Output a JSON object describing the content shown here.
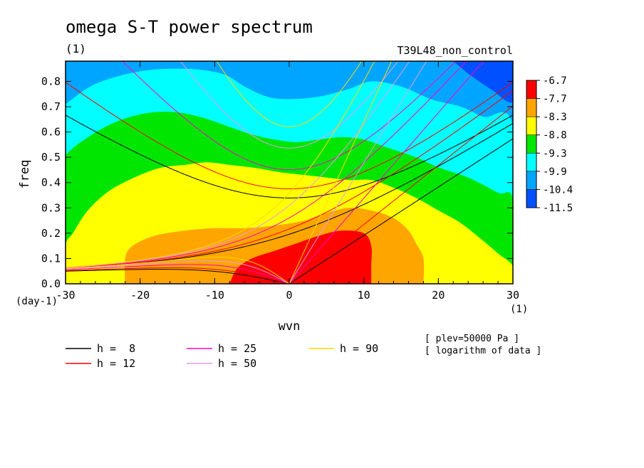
{
  "header": {
    "title": "omega S-T power spectrum",
    "units": "(1)",
    "run_label": "T39L48_non_control"
  },
  "notes": {
    "plev": "[ plev=50000 Pa ]",
    "transform": "[ logarithm of data ]"
  },
  "chart_data": {
    "type": "heatmap",
    "xlabel": "wvn",
    "xunits": "(1)",
    "ylabel": "freq",
    "yunits": "(day-1)",
    "xlim": [
      -30,
      30
    ],
    "ylim": [
      0,
      0.88
    ],
    "x_ticks": [
      -30,
      -20,
      -10,
      0,
      10,
      20,
      30
    ],
    "x_tick_labels": [
      "-30",
      "-20",
      "-10",
      "0",
      "10",
      "20",
      "30"
    ],
    "y_ticks": [
      0,
      0.1,
      0.2,
      0.3,
      0.4,
      0.5,
      0.6,
      0.7,
      0.8
    ],
    "y_tick_labels": [
      "0.0",
      "0.1",
      "0.2",
      "0.3",
      "0.4",
      "0.5",
      "0.6",
      "0.7",
      "0.8"
    ],
    "colorbar": {
      "levels": [
        "-6.7",
        "-7.7",
        "-8.3",
        "-8.8",
        "-9.3",
        "-9.9",
        "-10.4",
        "-11.5"
      ],
      "colors": [
        "#ff0000",
        "#ffa500",
        "#ffff00",
        "#00e600",
        "#00ffff",
        "#00a5ff",
        "#0050ff"
      ]
    },
    "contour_regions": [
      {
        "color": "#00a5ff",
        "points": [
          [
            -30,
            0.88
          ],
          [
            30,
            0.88
          ],
          [
            30,
            0
          ],
          [
            -30,
            0
          ]
        ]
      },
      {
        "color": "#0050ff",
        "points": [
          [
            22,
            0.88
          ],
          [
            30,
            0.88
          ],
          [
            30,
            0.72
          ],
          [
            27,
            0.77
          ],
          [
            24,
            0.83
          ]
        ]
      },
      {
        "color": "#00ffff",
        "points": [
          [
            -30,
            0.71
          ],
          [
            -26,
            0.79
          ],
          [
            -20,
            0.84
          ],
          [
            -14,
            0.85
          ],
          [
            -9,
            0.83
          ],
          [
            -6,
            0.78
          ],
          [
            -3,
            0.74
          ],
          [
            0,
            0.73
          ],
          [
            4,
            0.74
          ],
          [
            8,
            0.77
          ],
          [
            11,
            0.8
          ],
          [
            15,
            0.78
          ],
          [
            19,
            0.73
          ],
          [
            23,
            0.7
          ],
          [
            26,
            0.66
          ],
          [
            30,
            0.62
          ],
          [
            30,
            0
          ],
          [
            -30,
            0
          ]
        ]
      },
      {
        "color": "#00e600",
        "points": [
          [
            -30,
            0.51
          ],
          [
            -28,
            0.56
          ],
          [
            -24,
            0.63
          ],
          [
            -20,
            0.67
          ],
          [
            -16,
            0.68
          ],
          [
            -12,
            0.66
          ],
          [
            -8,
            0.62
          ],
          [
            -5,
            0.59
          ],
          [
            -2,
            0.57
          ],
          [
            1,
            0.56
          ],
          [
            4,
            0.57
          ],
          [
            7,
            0.58
          ],
          [
            10,
            0.57
          ],
          [
            13,
            0.54
          ],
          [
            17,
            0.5
          ],
          [
            20,
            0.46
          ],
          [
            24,
            0.42
          ],
          [
            28,
            0.36
          ],
          [
            30,
            0.33
          ],
          [
            30,
            0
          ],
          [
            -30,
            0
          ]
        ]
      },
      {
        "color": "#ffff00",
        "points": [
          [
            -30,
            0.0
          ],
          [
            -30,
            0.15
          ],
          [
            -29,
            0.2
          ],
          [
            -27,
            0.29
          ],
          [
            -24,
            0.37
          ],
          [
            -20,
            0.43
          ],
          [
            -17,
            0.46
          ],
          [
            -14,
            0.47
          ],
          [
            -11,
            0.48
          ],
          [
            -8,
            0.47
          ],
          [
            -5,
            0.46
          ],
          [
            -3,
            0.45
          ],
          [
            -1,
            0.44
          ],
          [
            2,
            0.43
          ],
          [
            5,
            0.42
          ],
          [
            8,
            0.41
          ],
          [
            11,
            0.41
          ],
          [
            14,
            0.38
          ],
          [
            17,
            0.34
          ],
          [
            20,
            0.29
          ],
          [
            23,
            0.24
          ],
          [
            26,
            0.17
          ],
          [
            28,
            0.12
          ],
          [
            30,
            0.07
          ],
          [
            30,
            0.0
          ]
        ]
      },
      {
        "color": "#ffa500",
        "points": [
          [
            -22,
            0.0
          ],
          [
            -22,
            0.1
          ],
          [
            -21,
            0.15
          ],
          [
            -18,
            0.19
          ],
          [
            -14,
            0.21
          ],
          [
            -10,
            0.22
          ],
          [
            -6,
            0.22
          ],
          [
            -2,
            0.23
          ],
          [
            2,
            0.25
          ],
          [
            5,
            0.28
          ],
          [
            8,
            0.3
          ],
          [
            11,
            0.29
          ],
          [
            14,
            0.26
          ],
          [
            16,
            0.21
          ],
          [
            17,
            0.16
          ],
          [
            18,
            0.1
          ],
          [
            18,
            0.0
          ]
        ]
      },
      {
        "color": "#ff0000",
        "points": [
          [
            -8,
            0.0
          ],
          [
            -7,
            0.06
          ],
          [
            -5,
            0.1
          ],
          [
            -2,
            0.13
          ],
          [
            1,
            0.16
          ],
          [
            4,
            0.19
          ],
          [
            7,
            0.21
          ],
          [
            10,
            0.2
          ],
          [
            11,
            0.15
          ],
          [
            11,
            0.07
          ],
          [
            11,
            0.0
          ]
        ]
      }
    ],
    "series": [
      {
        "name": "h =  8",
        "color": "#000000"
      },
      {
        "name": "h = 12",
        "color": "#ff0000"
      },
      {
        "name": "h = 25",
        "color": "#ff00c8"
      },
      {
        "name": "h = 50",
        "color": "#e69aee"
      },
      {
        "name": "h = 90",
        "color": "#ffd700"
      }
    ]
  }
}
